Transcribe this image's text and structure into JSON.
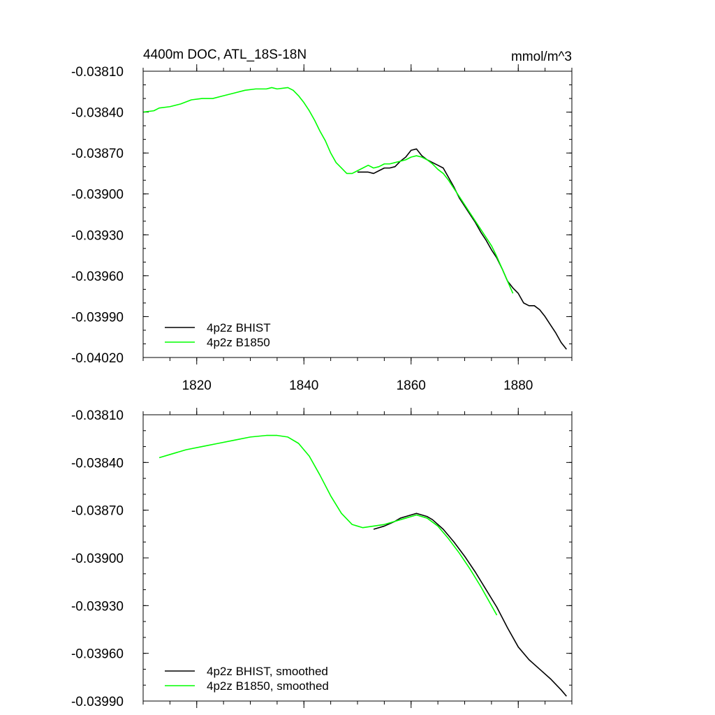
{
  "chart_data": [
    {
      "type": "line",
      "title": "4400m DOC, ATL_18S-18N",
      "units": "mmol/m^3",
      "xlim": [
        1810,
        1890
      ],
      "ylim": [
        -0.0402,
        -0.0381
      ],
      "xticks": [
        1820,
        1840,
        1860,
        1880
      ],
      "xtick_labels": [
        "1820",
        "1840",
        "1860",
        "1880"
      ],
      "yticks": [
        -0.0381,
        -0.0384,
        -0.0387,
        -0.039,
        -0.0393,
        -0.0396,
        -0.0399,
        -0.0402
      ],
      "ytick_labels": [
        "-0.03810",
        "-0.03840",
        "-0.03870",
        "-0.03900",
        "-0.03930",
        "-0.03960",
        "-0.03990",
        "-0.04020"
      ],
      "legend_position": "bottom-left",
      "series": [
        {
          "name": "4p2z BHIST",
          "color": "#000000",
          "points": [
            [
              1850,
              -0.03884
            ],
            [
              1852,
              -0.03884
            ],
            [
              1853,
              -0.03885
            ],
            [
              1854,
              -0.03883
            ],
            [
              1855,
              -0.03881
            ],
            [
              1856,
              -0.03881
            ],
            [
              1857,
              -0.0388
            ],
            [
              1858,
              -0.03876
            ],
            [
              1859,
              -0.03873
            ],
            [
              1860,
              -0.03868
            ],
            [
              1861,
              -0.03867
            ],
            [
              1862,
              -0.03872
            ],
            [
              1863,
              -0.03875
            ],
            [
              1864,
              -0.03877
            ],
            [
              1865,
              -0.03879
            ],
            [
              1866,
              -0.03881
            ],
            [
              1867,
              -0.03888
            ],
            [
              1868,
              -0.03895
            ],
            [
              1869,
              -0.03903
            ],
            [
              1870,
              -0.03909
            ],
            [
              1871,
              -0.03915
            ],
            [
              1872,
              -0.03921
            ],
            [
              1873,
              -0.03928
            ],
            [
              1874,
              -0.03934
            ],
            [
              1875,
              -0.03941
            ],
            [
              1876,
              -0.03947
            ],
            [
              1877,
              -0.03955
            ],
            [
              1878,
              -0.03964
            ],
            [
              1879,
              -0.03969
            ],
            [
              1880,
              -0.03973
            ],
            [
              1881,
              -0.0398
            ],
            [
              1882,
              -0.03982
            ],
            [
              1883,
              -0.03982
            ],
            [
              1884,
              -0.03985
            ],
            [
              1885,
              -0.0399
            ],
            [
              1886,
              -0.03996
            ],
            [
              1887,
              -0.04002
            ],
            [
              1888,
              -0.04009
            ],
            [
              1889,
              -0.04014
            ]
          ]
        },
        {
          "name": "4p2z B1850",
          "color": "#00ff00",
          "points": [
            [
              1810,
              -0.0384
            ],
            [
              1812,
              -0.03839
            ],
            [
              1813,
              -0.03837
            ],
            [
              1815,
              -0.03836
            ],
            [
              1817,
              -0.03834
            ],
            [
              1819,
              -0.03831
            ],
            [
              1821,
              -0.0383
            ],
            [
              1823,
              -0.0383
            ],
            [
              1825,
              -0.03828
            ],
            [
              1827,
              -0.03826
            ],
            [
              1829,
              -0.03824
            ],
            [
              1831,
              -0.03823
            ],
            [
              1833,
              -0.03823
            ],
            [
              1834,
              -0.03822
            ],
            [
              1835,
              -0.03823
            ],
            [
              1837,
              -0.03822
            ],
            [
              1838,
              -0.03824
            ],
            [
              1839,
              -0.03828
            ],
            [
              1840,
              -0.03833
            ],
            [
              1841,
              -0.03839
            ],
            [
              1842,
              -0.03846
            ],
            [
              1843,
              -0.03854
            ],
            [
              1844,
              -0.03861
            ],
            [
              1845,
              -0.0387
            ],
            [
              1846,
              -0.03877
            ],
            [
              1847,
              -0.03881
            ],
            [
              1848,
              -0.03885
            ],
            [
              1849,
              -0.03885
            ],
            [
              1850,
              -0.03883
            ],
            [
              1851,
              -0.03881
            ],
            [
              1852,
              -0.03879
            ],
            [
              1853,
              -0.03881
            ],
            [
              1854,
              -0.0388
            ],
            [
              1855,
              -0.03878
            ],
            [
              1856,
              -0.03878
            ],
            [
              1857,
              -0.03877
            ],
            [
              1858,
              -0.03876
            ],
            [
              1859,
              -0.03875
            ],
            [
              1860,
              -0.03873
            ],
            [
              1861,
              -0.03872
            ],
            [
              1862,
              -0.03873
            ],
            [
              1863,
              -0.03875
            ],
            [
              1864,
              -0.03878
            ],
            [
              1865,
              -0.03882
            ],
            [
              1866,
              -0.03885
            ],
            [
              1867,
              -0.0389
            ],
            [
              1868,
              -0.03896
            ],
            [
              1869,
              -0.03902
            ],
            [
              1870,
              -0.03908
            ],
            [
              1871,
              -0.03914
            ],
            [
              1872,
              -0.0392
            ],
            [
              1873,
              -0.03926
            ],
            [
              1874,
              -0.03932
            ],
            [
              1875,
              -0.03938
            ],
            [
              1876,
              -0.03946
            ],
            [
              1877,
              -0.03955
            ],
            [
              1878,
              -0.03964
            ],
            [
              1879,
              -0.03973
            ]
          ]
        }
      ]
    },
    {
      "type": "line",
      "xlim": [
        1810,
        1890
      ],
      "ylim": [
        -0.0399,
        -0.0381
      ],
      "xticks": [
        1820,
        1840,
        1860,
        1880
      ],
      "xtick_labels": [],
      "yticks": [
        -0.0381,
        -0.0384,
        -0.0387,
        -0.039,
        -0.0393,
        -0.0396,
        -0.0399
      ],
      "ytick_labels": [
        "-0.03810",
        "-0.03840",
        "-0.03870",
        "-0.03900",
        "-0.03930",
        "-0.03960",
        "-0.03990"
      ],
      "legend_position": "bottom-left",
      "series": [
        {
          "name": "4p2z BHIST, smoothed",
          "color": "#000000",
          "points": [
            [
              1853,
              -0.03882
            ],
            [
              1855,
              -0.0388
            ],
            [
              1857,
              -0.03877
            ],
            [
              1858,
              -0.03875
            ],
            [
              1859,
              -0.03874
            ],
            [
              1860,
              -0.03873
            ],
            [
              1861,
              -0.03872
            ],
            [
              1862,
              -0.03873
            ],
            [
              1863,
              -0.03874
            ],
            [
              1864,
              -0.03876
            ],
            [
              1866,
              -0.03882
            ],
            [
              1868,
              -0.0389
            ],
            [
              1870,
              -0.03899
            ],
            [
              1872,
              -0.03909
            ],
            [
              1874,
              -0.0392
            ],
            [
              1876,
              -0.03931
            ],
            [
              1878,
              -0.03944
            ],
            [
              1880,
              -0.03956
            ],
            [
              1882,
              -0.03964
            ],
            [
              1884,
              -0.0397
            ],
            [
              1886,
              -0.03976
            ],
            [
              1888,
              -0.03983
            ],
            [
              1889,
              -0.03987
            ]
          ]
        },
        {
          "name": "4p2z B1850, smoothed",
          "color": "#00ff00",
          "points": [
            [
              1813,
              -0.03837
            ],
            [
              1815,
              -0.03835
            ],
            [
              1818,
              -0.03832
            ],
            [
              1821,
              -0.0383
            ],
            [
              1824,
              -0.03828
            ],
            [
              1827,
              -0.03826
            ],
            [
              1830,
              -0.03824
            ],
            [
              1833,
              -0.03823
            ],
            [
              1835,
              -0.03823
            ],
            [
              1837,
              -0.03824
            ],
            [
              1839,
              -0.03828
            ],
            [
              1841,
              -0.03836
            ],
            [
              1843,
              -0.03848
            ],
            [
              1845,
              -0.03861
            ],
            [
              1847,
              -0.03872
            ],
            [
              1849,
              -0.03879
            ],
            [
              1851,
              -0.03881
            ],
            [
              1853,
              -0.0388
            ],
            [
              1855,
              -0.03879
            ],
            [
              1857,
              -0.03877
            ],
            [
              1859,
              -0.03875
            ],
            [
              1861,
              -0.03873
            ],
            [
              1863,
              -0.03875
            ],
            [
              1865,
              -0.0388
            ],
            [
              1867,
              -0.03888
            ],
            [
              1869,
              -0.03897
            ],
            [
              1871,
              -0.03907
            ],
            [
              1873,
              -0.03918
            ],
            [
              1875,
              -0.0393
            ],
            [
              1876,
              -0.03936
            ]
          ]
        }
      ]
    }
  ]
}
